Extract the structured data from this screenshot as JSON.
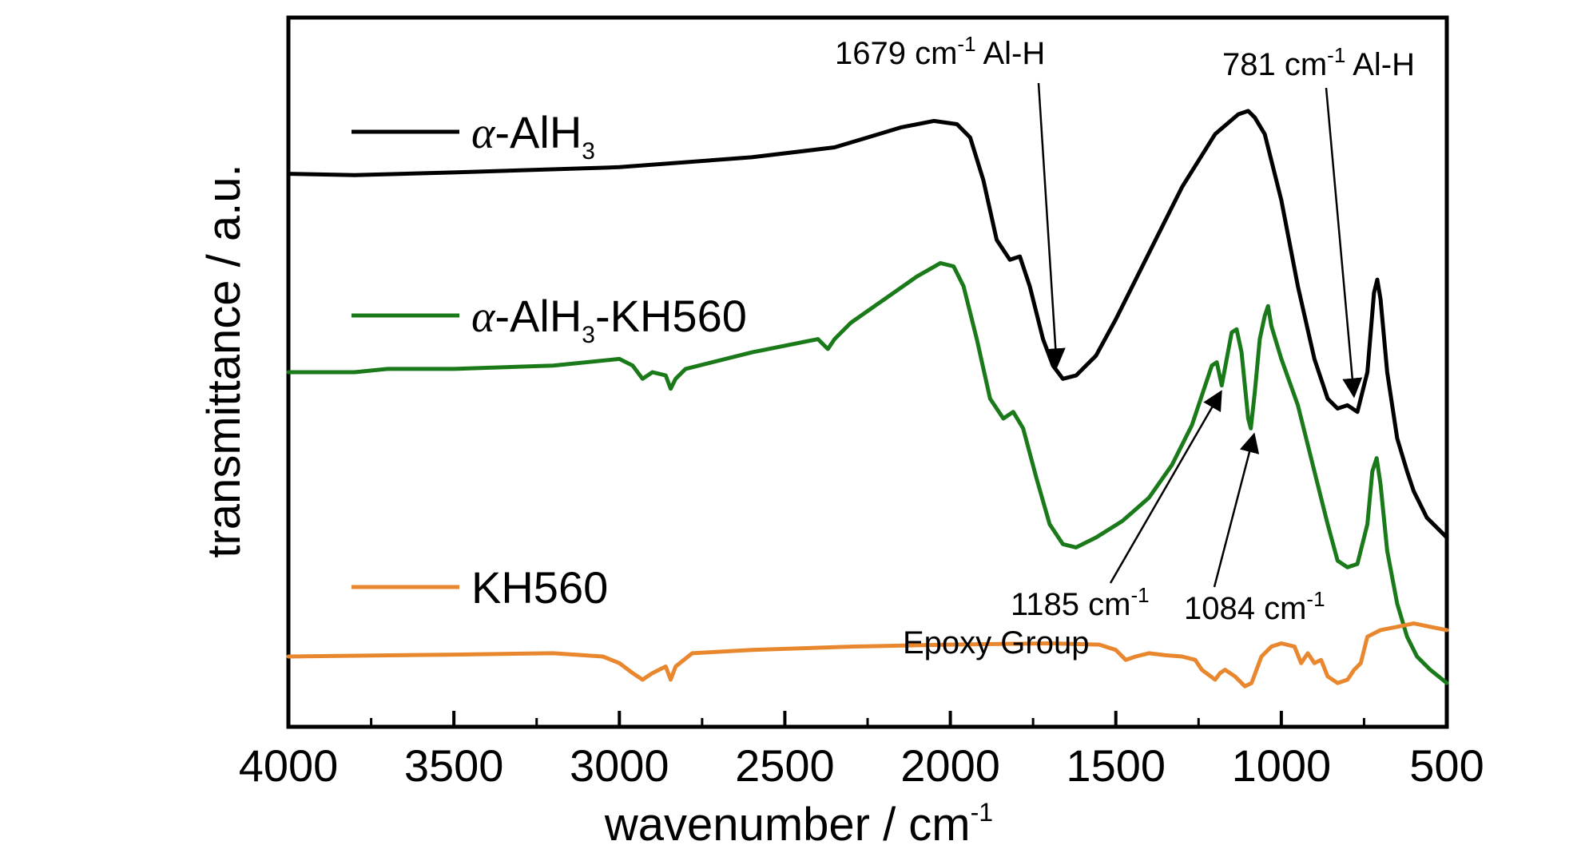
{
  "chart_data": {
    "type": "line",
    "xlabel": "wavenumber / cm",
    "xlabel_sup": "-1",
    "ylabel": "transmittance / a.u.",
    "xlim": [
      4000,
      500
    ],
    "x_reversed": true,
    "ylim": [
      0,
      1
    ],
    "grid": false,
    "legend_position": "left",
    "x_ticks": [
      4000,
      3500,
      3000,
      2500,
      2000,
      1500,
      1000,
      500
    ],
    "series": [
      {
        "name": "α-AlH3",
        "label_italic": "α",
        "label_main": "-AlH",
        "label_sub": "3",
        "label_tail": "",
        "color": "#000000",
        "points": [
          [
            4000,
            0.8
          ],
          [
            3800,
            0.798
          ],
          [
            3500,
            0.802
          ],
          [
            3000,
            0.81
          ],
          [
            2600,
            0.825
          ],
          [
            2350,
            0.84
          ],
          [
            2250,
            0.855
          ],
          [
            2150,
            0.87
          ],
          [
            2050,
            0.88
          ],
          [
            1980,
            0.875
          ],
          [
            1940,
            0.855
          ],
          [
            1900,
            0.79
          ],
          [
            1860,
            0.7
          ],
          [
            1820,
            0.67
          ],
          [
            1790,
            0.675
          ],
          [
            1760,
            0.63
          ],
          [
            1720,
            0.55
          ],
          [
            1690,
            0.51
          ],
          [
            1660,
            0.49
          ],
          [
            1620,
            0.495
          ],
          [
            1560,
            0.525
          ],
          [
            1500,
            0.58
          ],
          [
            1400,
            0.68
          ],
          [
            1300,
            0.78
          ],
          [
            1200,
            0.86
          ],
          [
            1130,
            0.89
          ],
          [
            1100,
            0.895
          ],
          [
            1080,
            0.885
          ],
          [
            1050,
            0.86
          ],
          [
            1000,
            0.76
          ],
          [
            950,
            0.63
          ],
          [
            900,
            0.52
          ],
          [
            860,
            0.46
          ],
          [
            830,
            0.445
          ],
          [
            800,
            0.45
          ],
          [
            770,
            0.44
          ],
          [
            740,
            0.5
          ],
          [
            720,
            0.62
          ],
          [
            710,
            0.64
          ],
          [
            700,
            0.61
          ],
          [
            680,
            0.5
          ],
          [
            650,
            0.4
          ],
          [
            620,
            0.35
          ],
          [
            600,
            0.32
          ],
          [
            560,
            0.28
          ],
          [
            520,
            0.26
          ],
          [
            500,
            0.25
          ]
        ]
      },
      {
        "name": "α-AlH3-KH560",
        "label_italic": "α",
        "label_main": "-AlH",
        "label_sub": "3",
        "label_tail": "-KH560",
        "color": "#1a7a1a",
        "points": [
          [
            4000,
            0.5
          ],
          [
            3800,
            0.5
          ],
          [
            3700,
            0.505
          ],
          [
            3500,
            0.505
          ],
          [
            3200,
            0.51
          ],
          [
            3000,
            0.52
          ],
          [
            2960,
            0.51
          ],
          [
            2930,
            0.49
          ],
          [
            2900,
            0.5
          ],
          [
            2860,
            0.495
          ],
          [
            2845,
            0.475
          ],
          [
            2830,
            0.49
          ],
          [
            2800,
            0.505
          ],
          [
            2600,
            0.53
          ],
          [
            2400,
            0.55
          ],
          [
            2370,
            0.535
          ],
          [
            2350,
            0.55
          ],
          [
            2300,
            0.575
          ],
          [
            2200,
            0.61
          ],
          [
            2100,
            0.645
          ],
          [
            2030,
            0.665
          ],
          [
            1990,
            0.66
          ],
          [
            1960,
            0.63
          ],
          [
            1920,
            0.55
          ],
          [
            1880,
            0.46
          ],
          [
            1840,
            0.43
          ],
          [
            1810,
            0.44
          ],
          [
            1780,
            0.415
          ],
          [
            1740,
            0.34
          ],
          [
            1700,
            0.27
          ],
          [
            1660,
            0.24
          ],
          [
            1620,
            0.235
          ],
          [
            1560,
            0.25
          ],
          [
            1480,
            0.275
          ],
          [
            1400,
            0.31
          ],
          [
            1330,
            0.36
          ],
          [
            1270,
            0.42
          ],
          [
            1230,
            0.48
          ],
          [
            1210,
            0.51
          ],
          [
            1195,
            0.515
          ],
          [
            1180,
            0.48
          ],
          [
            1165,
            0.52
          ],
          [
            1150,
            0.56
          ],
          [
            1135,
            0.565
          ],
          [
            1120,
            0.53
          ],
          [
            1100,
            0.43
          ],
          [
            1092,
            0.415
          ],
          [
            1080,
            0.47
          ],
          [
            1065,
            0.55
          ],
          [
            1050,
            0.585
          ],
          [
            1040,
            0.6
          ],
          [
            1030,
            0.57
          ],
          [
            1000,
            0.52
          ],
          [
            950,
            0.45
          ],
          [
            900,
            0.35
          ],
          [
            860,
            0.27
          ],
          [
            830,
            0.215
          ],
          [
            800,
            0.205
          ],
          [
            770,
            0.21
          ],
          [
            740,
            0.27
          ],
          [
            725,
            0.35
          ],
          [
            712,
            0.37
          ],
          [
            700,
            0.33
          ],
          [
            680,
            0.23
          ],
          [
            650,
            0.15
          ],
          [
            620,
            0.1
          ],
          [
            590,
            0.07
          ],
          [
            550,
            0.05
          ],
          [
            500,
            0.03
          ]
        ]
      },
      {
        "name": "KH560",
        "label_italic": "",
        "label_main": "KH560",
        "label_sub": "",
        "label_tail": "",
        "color": "#e8872e",
        "points": [
          [
            4000,
            0.07
          ],
          [
            3500,
            0.073
          ],
          [
            3200,
            0.075
          ],
          [
            3050,
            0.07
          ],
          [
            3000,
            0.06
          ],
          [
            2960,
            0.045
          ],
          [
            2930,
            0.035
          ],
          [
            2900,
            0.045
          ],
          [
            2860,
            0.055
          ],
          [
            2845,
            0.035
          ],
          [
            2830,
            0.055
          ],
          [
            2780,
            0.075
          ],
          [
            2600,
            0.08
          ],
          [
            2300,
            0.085
          ],
          [
            2000,
            0.088
          ],
          [
            1700,
            0.09
          ],
          [
            1550,
            0.088
          ],
          [
            1500,
            0.08
          ],
          [
            1470,
            0.065
          ],
          [
            1440,
            0.07
          ],
          [
            1400,
            0.075
          ],
          [
            1350,
            0.072
          ],
          [
            1300,
            0.07
          ],
          [
            1260,
            0.065
          ],
          [
            1240,
            0.05
          ],
          [
            1200,
            0.035
          ],
          [
            1185,
            0.045
          ],
          [
            1170,
            0.05
          ],
          [
            1140,
            0.04
          ],
          [
            1110,
            0.025
          ],
          [
            1090,
            0.03
          ],
          [
            1060,
            0.07
          ],
          [
            1030,
            0.085
          ],
          [
            1000,
            0.09
          ],
          [
            960,
            0.085
          ],
          [
            940,
            0.06
          ],
          [
            920,
            0.075
          ],
          [
            900,
            0.06
          ],
          [
            880,
            0.065
          ],
          [
            860,
            0.04
          ],
          [
            830,
            0.03
          ],
          [
            800,
            0.035
          ],
          [
            780,
            0.05
          ],
          [
            760,
            0.06
          ],
          [
            740,
            0.1
          ],
          [
            700,
            0.11
          ],
          [
            650,
            0.115
          ],
          [
            600,
            0.12
          ],
          [
            550,
            0.115
          ],
          [
            500,
            0.11
          ]
        ]
      }
    ],
    "annotations": [
      {
        "text": "1679 cm",
        "sup": "-1",
        "tail": " Al-H",
        "x": 1679,
        "y": 0.49
      },
      {
        "text": "781 cm",
        "sup": "-1",
        "tail": " Al-H",
        "x": 781,
        "y": 0.445
      },
      {
        "text": "1185 cm",
        "sup": "-1",
        "tail": "",
        "x": 1185,
        "y": 0.48
      },
      {
        "text": "1084 cm",
        "sup": "-1",
        "tail": "",
        "x": 1084,
        "y": 0.415
      },
      {
        "text": "Epoxy Group",
        "sup": "",
        "tail": "",
        "x": null,
        "y": null
      }
    ]
  }
}
